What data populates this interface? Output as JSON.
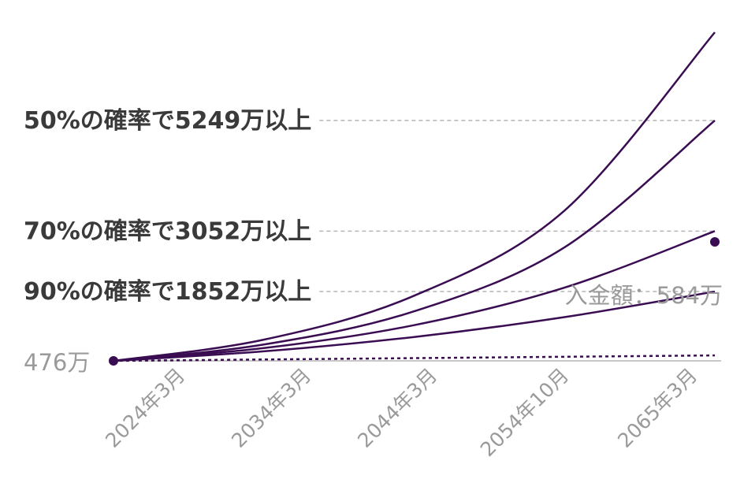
{
  "chart_data": {
    "type": "line",
    "x_tick_labels": [
      "2024年3月",
      "2034年3月",
      "2044年3月",
      "2054年10月",
      "2065年3月"
    ],
    "start_label": "476万",
    "deposit_label": "入金額：584万",
    "start_value": 476,
    "deposit_end_value": 584,
    "probability_labels": [
      {
        "text": "50%の確率で5249万以上",
        "value": 5249
      },
      {
        "text": "70%の確率で3052万以上",
        "value": 3052
      },
      {
        "text": "90%の確率で1852万以上",
        "value": 1852
      }
    ],
    "series": [
      {
        "values": [
          476,
          896,
          1770,
          3460,
          7000
        ]
      },
      {
        "values": [
          476,
          800,
          1460,
          2730,
          5249
        ]
      },
      {
        "values": [
          476,
          730,
          1185,
          1930,
          3052
        ]
      },
      {
        "values": [
          476,
          665,
          950,
          1345,
          1852
        ]
      },
      {
        "values": [
          476,
          503,
          530,
          557,
          584
        ]
      }
    ],
    "colors": {
      "line": "#3a0d52",
      "reference": "#b5b5b5",
      "text_dark": "#3a3a3a",
      "text_gray": "#9a9a9a"
    }
  }
}
